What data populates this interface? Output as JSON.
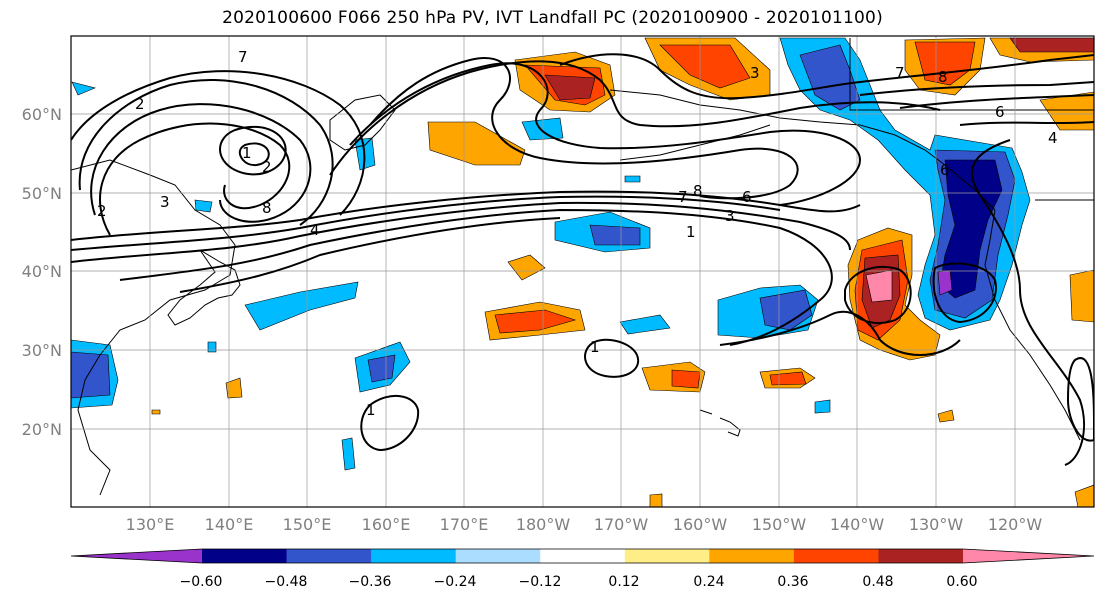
{
  "title": "2020100600 F066 250 hPa PV, IVT Landfall PC (2020100900 - 2020101100)",
  "map": {
    "lat_labels": [
      "60°N",
      "50°N",
      "40°N",
      "30°N",
      "20°N"
    ],
    "lon_labels": [
      "130°E",
      "140°E",
      "150°E",
      "160°E",
      "170°E",
      "180°W",
      "170°W",
      "160°W",
      "150°W",
      "140°W",
      "130°W",
      "120°W"
    ],
    "contour_labels": [
      "7",
      "2",
      "1",
      "2",
      "8",
      "2",
      "3",
      "4",
      "3",
      "7",
      "8",
      "6",
      "3",
      "1",
      "7",
      "8",
      "6",
      "4",
      "1",
      "1",
      "6"
    ]
  },
  "colorbar": {
    "ticks": [
      "−0.60",
      "−0.48",
      "−0.36",
      "−0.24",
      "−0.12",
      "0.12",
      "0.24",
      "0.36",
      "0.48",
      "0.60"
    ],
    "colors": [
      "#9933cc",
      "#000088",
      "#3355cc",
      "#00bbff",
      "#aaddff",
      "#ffffff",
      "#ffee88",
      "#ffa500",
      "#ff4400",
      "#aa2222",
      "#ff88aa"
    ]
  }
}
